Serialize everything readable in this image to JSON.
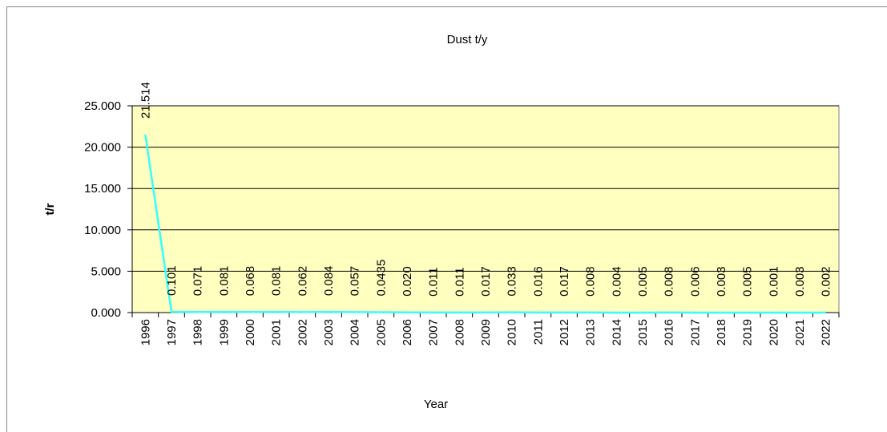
{
  "chart_data": {
    "type": "line",
    "title": "Dust  t/y",
    "x_label": "Year",
    "y_label": "t/r",
    "categories": [
      "1996",
      "1997",
      "1998",
      "1999",
      "2000",
      "2001",
      "2002",
      "2003",
      "2004",
      "2005",
      "2006",
      "2007",
      "2008",
      "2009",
      "2010",
      "2011",
      "2012",
      "2013",
      "2014",
      "2015",
      "2016",
      "2017",
      "2018",
      "2019",
      "2020",
      "2021",
      "2022"
    ],
    "values": [
      21.514,
      0.101,
      0.071,
      0.081,
      0.068,
      0.081,
      0.062,
      0.084,
      0.057,
      0.0435,
      0.02,
      0.011,
      0.011,
      0.017,
      0.033,
      0.016,
      0.017,
      0.008,
      0.004,
      0.005,
      0.008,
      0.006,
      0.003,
      0.005,
      0.001,
      0.003,
      0.002
    ],
    "value_labels": [
      "21.514",
      "0.101",
      "0.071",
      "0.081",
      "0.068",
      "0.081",
      "0.062",
      "0.084",
      "0.057",
      "0.0435",
      "0.020",
      "0.011",
      "0.011",
      "0.017",
      "0.033",
      "0.016",
      "0.017",
      "0.008",
      "0.004",
      "0.005",
      "0.008",
      "0.006",
      "0.003",
      "0.005",
      "0.001",
      "0.003",
      "0.002"
    ],
    "color": "#33ffff",
    "plot_background": "#ffffc0",
    "ylim": [
      0,
      25
    ],
    "yticks": [
      {
        "value": 0,
        "label": "0.000"
      },
      {
        "value": 5,
        "label": "5.000"
      },
      {
        "value": 10,
        "label": "10.000"
      },
      {
        "value": 15,
        "label": "15.000"
      },
      {
        "value": 20,
        "label": "20.000"
      },
      {
        "value": 25,
        "label": "25.000"
      }
    ],
    "grid": true
  }
}
